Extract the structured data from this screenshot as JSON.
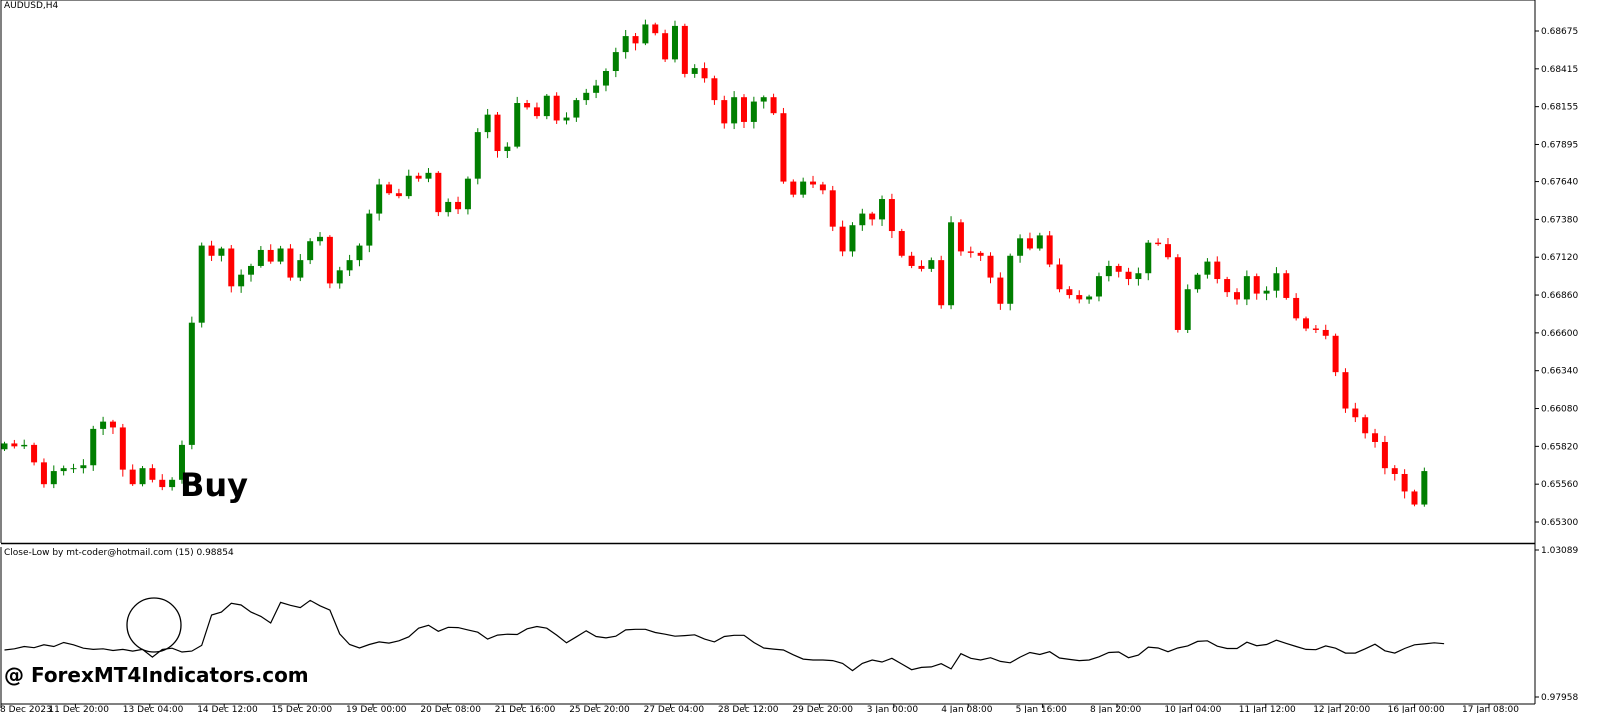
{
  "chart_data": [
    {
      "type": "candlestick",
      "title": "AUDUSD,H4",
      "colors": {
        "bull": "#007e00",
        "bear": "#ff0000",
        "wick": "#007e00"
      },
      "y_ticks": [
        "0.68675",
        "0.68415",
        "0.68155",
        "0.67895",
        "0.67640",
        "0.67380",
        "0.67120",
        "0.66860",
        "0.66600",
        "0.66340",
        "0.66080",
        "0.65820",
        "0.65560",
        "0.65300"
      ],
      "y_tick_values": [
        0.68675,
        0.68415,
        0.68155,
        0.67895,
        0.6764,
        0.6738,
        0.6712,
        0.6686,
        0.666,
        0.6634,
        0.6608,
        0.6582,
        0.6556,
        0.653
      ],
      "x_ticks": [
        "8 Dec 2023",
        "11 Dec 20:00",
        "13 Dec 04:00",
        "14 Dec 12:00",
        "15 Dec 20:00",
        "19 Dec 00:00",
        "20 Dec 08:00",
        "21 Dec 16:00",
        "25 Dec 20:00",
        "27 Dec 04:00",
        "28 Dec 12:00",
        "29 Dec 20:00",
        "3 Jan 00:00",
        "4 Jan 08:00",
        "5 Jan 16:00",
        "8 Jan 20:00",
        "10 Jan 04:00",
        "11 Jan 12:00",
        "12 Jan 20:00",
        "16 Jan 00:00",
        "17 Jan 08:00"
      ],
      "annotation": "Buy",
      "closes": [
        0.6584,
        0.6582,
        0.6583,
        0.6571,
        0.6556,
        0.6565,
        0.6567,
        0.6567,
        0.6569,
        0.6594,
        0.6599,
        0.6595,
        0.6566,
        0.6556,
        0.6567,
        0.6559,
        0.6554,
        0.6559,
        0.6583,
        0.6667,
        0.672,
        0.6713,
        0.6718,
        0.6692,
        0.67,
        0.6706,
        0.6717,
        0.6709,
        0.6718,
        0.6698,
        0.671,
        0.6723,
        0.6726,
        0.6694,
        0.6703,
        0.671,
        0.672,
        0.6742,
        0.6762,
        0.6756,
        0.6754,
        0.6768,
        0.6766,
        0.677,
        0.6743,
        0.675,
        0.6745,
        0.6766,
        0.6798,
        0.681,
        0.6785,
        0.6788,
        0.6818,
        0.6815,
        0.6809,
        0.6823,
        0.6806,
        0.6808,
        0.682,
        0.6825,
        0.683,
        0.684,
        0.6853,
        0.6864,
        0.6859,
        0.6872,
        0.6866,
        0.6848,
        0.6871,
        0.6838,
        0.6842,
        0.6835,
        0.682,
        0.6804,
        0.6822,
        0.6805,
        0.6819,
        0.6822,
        0.6811,
        0.6764,
        0.6755,
        0.6764,
        0.6762,
        0.6758,
        0.6733,
        0.6716,
        0.6734,
        0.6742,
        0.6738,
        0.6752,
        0.673,
        0.6713,
        0.6706,
        0.6704,
        0.671,
        0.6679,
        0.6736,
        0.6716,
        0.6715,
        0.6713,
        0.6698,
        0.668,
        0.6713,
        0.6725,
        0.6718,
        0.6727,
        0.6707,
        0.669,
        0.6686,
        0.6683,
        0.6685,
        0.6699,
        0.6706,
        0.6702,
        0.6697,
        0.6701,
        0.6722,
        0.6721,
        0.6712,
        0.6662,
        0.669,
        0.67,
        0.6709,
        0.6697,
        0.6688,
        0.6683,
        0.6699,
        0.6687,
        0.6689,
        0.6701,
        0.6684,
        0.667,
        0.6663,
        0.6662,
        0.6658,
        0.6633,
        0.6608,
        0.6602,
        0.6591,
        0.6585,
        0.6567,
        0.6563,
        0.6551,
        0.6542,
        0.6565
      ]
    },
    {
      "type": "line",
      "title": "Close-Low by mt-coder@hotmail.com (15) 0.98854",
      "y_ticks": [
        "1.03089",
        "0.97958"
      ],
      "y_tick_values": [
        1.03089,
        0.97958
      ],
      "ylim": [
        0.97958,
        1.03089
      ],
      "color": "#000000",
      "values": [
        0.996,
        0.9964,
        0.9972,
        0.9968,
        0.9978,
        0.9972,
        0.9986,
        0.9978,
        0.9966,
        0.9962,
        0.9964,
        0.9958,
        0.9962,
        0.9956,
        0.9962,
        0.9935,
        0.9962,
        0.9966,
        0.9953,
        0.9956,
        0.9976,
        1.0082,
        1.0092,
        1.0123,
        1.0117,
        1.0092,
        1.0077,
        1.0054,
        1.0126,
        1.0116,
        1.0108,
        1.0133,
        1.0114,
        1.0099,
        1.0016,
        0.9979,
        0.9967,
        0.9979,
        0.9988,
        0.9984,
        0.9992,
        1.0006,
        1.0036,
        1.0046,
        1.0025,
        1.0039,
        1.0038,
        1.003,
        1.0022,
        0.9998,
        1.0012,
        1.0015,
        1.0014,
        1.0034,
        1.0042,
        1.0036,
        1.0012,
        0.9985,
        1.0006,
        1.0027,
        1.0007,
        1.0002,
        1.0008,
        1.003,
        1.0032,
        1.0032,
        1.0021,
        1.0015,
        1.0008,
        1.001,
        1.0013,
        0.9998,
        0.9988,
        1.0007,
        1.0011,
        1.0011,
        0.9986,
        0.9967,
        0.9963,
        0.996,
        0.9943,
        0.9928,
        0.9925,
        0.9925,
        0.9923,
        0.9913,
        0.9888,
        0.9913,
        0.9925,
        0.9918,
        0.9931,
        0.9911,
        0.9891,
        0.9899,
        0.9901,
        0.9912,
        0.9894,
        0.9947,
        0.9931,
        0.9925,
        0.9933,
        0.992,
        0.9915,
        0.9935,
        0.9951,
        0.9944,
        0.9954,
        0.9932,
        0.9927,
        0.9923,
        0.9925,
        0.9936,
        0.9951,
        0.9953,
        0.9933,
        0.9942,
        0.997,
        0.9967,
        0.9954,
        0.9967,
        0.9974,
        0.999,
        0.9992,
        0.9973,
        0.9965,
        0.9965,
        0.9987,
        0.9975,
        0.9979,
        0.9994,
        0.9983,
        0.9972,
        0.9962,
        0.9961,
        0.9974,
        0.9966,
        0.9949,
        0.9949,
        0.9964,
        0.998,
        0.9957,
        0.9949,
        0.9965,
        0.9978,
        0.9981,
        0.9985,
        0.9982
      ]
    }
  ],
  "watermark": "@ ForexMT4Indicators.com"
}
